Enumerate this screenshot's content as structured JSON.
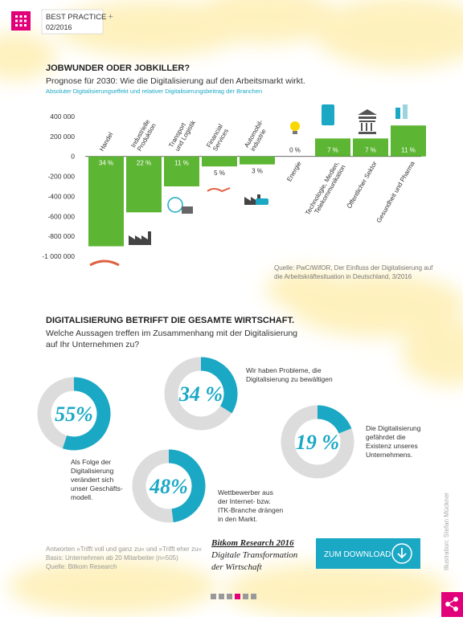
{
  "header": {
    "title": "BEST PRACTICE",
    "plus": "+",
    "issue": "02/2016"
  },
  "chart_data": [
    {
      "type": "bar",
      "title": "JOBWUNDER ODER JOBKILLER?",
      "subtitle": "Prognose für 2030: Wie die Digitalisierung auf den Arbeitsmarkt wirkt.",
      "note": "Absoluter Digitalisierungseffekt und relativer Digitalisierungsbeitrag der Branchen",
      "categories": [
        [
          "Handel"
        ],
        [
          "Industrielle",
          "Produktion"
        ],
        [
          "Transport",
          "und Logistik"
        ],
        [
          "Financial",
          "Services"
        ],
        [
          "Automobil-",
          "industrie"
        ],
        [
          "Energie"
        ],
        [
          "Technologie, Medien,",
          "Telekommunikation"
        ],
        [
          "Öffentlicher Sektor"
        ],
        [
          "Gesundheit und Pharma"
        ]
      ],
      "values": [
        -900000,
        -560000,
        -300000,
        -100000,
        -80000,
        0,
        180000,
        180000,
        310000
      ],
      "shares": [
        34,
        22,
        11,
        5,
        3,
        0,
        7,
        7,
        11
      ],
      "share_labels": [
        "34 %",
        "22 %",
        "11 %",
        "5 %",
        "3 %",
        "0 %",
        "7 %",
        "7 %",
        "11 %"
      ],
      "color": "#5db534",
      "ylim": [
        -1000000,
        400000
      ],
      "yticks": [
        {
          "value": 400000,
          "label": "400 000"
        },
        {
          "value": 200000,
          "label": "200 000"
        },
        0,
        {
          "value": -200000,
          "label": "-200 000"
        },
        {
          "value": -400000,
          "label": "-400 000"
        },
        {
          "value": -600000,
          "label": "-600 000"
        },
        {
          "value": -800000,
          "label": "-800 000"
        },
        {
          "value": -1000000,
          "label": "-1 000 000"
        }
      ],
      "source": [
        "Quelle: PwC/WifOR, Der Einfluss der Digitalisierung auf",
        "die Arbeitskräftesituation in Deutschland, 3/2016"
      ]
    },
    {
      "type": "donut",
      "title": "DIGITALISIERUNG BETRIFFT DIE GESAMTE WIRTSCHAFT.",
      "subtitle": [
        "Welche Aussagen treffen im Zusammenhang mit der Digitalisierung",
        "auf Ihr Unternehmen zu?"
      ],
      "statements": [
        [
          "Als Folge der",
          "Digitalisierung",
          "verändert sich",
          "unser Geschäfts-",
          "modell."
        ],
        [
          "Wir haben Probleme, die",
          "Digitalisierung zu bewältigen"
        ],
        [
          "Die Digitalisierung",
          "gefährdet die",
          "Existenz unseres",
          "Unternehmens."
        ],
        [
          "Wettbewerber aus",
          "der Internet- bzw.",
          "ITK-Branche drängen",
          "in den Markt."
        ]
      ],
      "values": [
        55,
        34,
        19,
        48
      ],
      "value_labels": [
        "55%",
        "34 %",
        "19 %",
        "48%"
      ],
      "color": "#1aa8c5",
      "track_color": "#dcdcdc",
      "footnotes": [
        "Antworten »Trifft voll und ganz zu« und »Trifft eher zu«",
        "Basis: Unternehmen ab 20 Mitarbeiter (n=505)",
        "Quelle: Bitkom Research"
      ]
    }
  ],
  "study": {
    "title": "Bitkom Research 2016",
    "lines": [
      "Digitale Transformation",
      "der Wirtschaft"
    ]
  },
  "button": "ZUM DOWNLOAD",
  "credit": "Illustration: Stefan Mückner"
}
